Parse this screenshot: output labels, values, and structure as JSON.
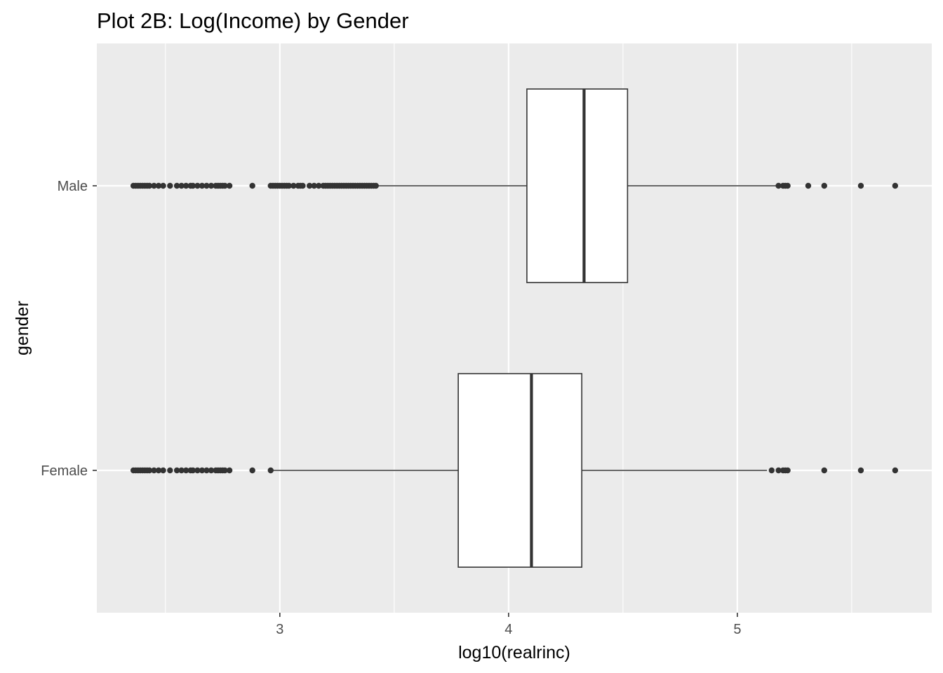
{
  "chart_data": {
    "type": "boxplot",
    "orientation": "horizontal",
    "title": "Plot 2B: Log(Income) by Gender",
    "xlabel": "log10(realrinc)",
    "ylabel": "gender",
    "xlim": [
      2.2,
      5.85
    ],
    "x_ticks": [
      3,
      4,
      5
    ],
    "x_tick_labels": [
      "3",
      "4",
      "5"
    ],
    "x_minor_gridlines": [
      2.5,
      3.5,
      4.5,
      5.5
    ],
    "categories": [
      "Male",
      "Female"
    ],
    "grid": true,
    "legend": "none",
    "colors": {
      "panel_background": "#ebebeb",
      "grid_line": "#ffffff",
      "box_fill": "#ffffff",
      "box_line": "#333333",
      "outlier": "#333333"
    },
    "boxes": [
      {
        "category": "Male",
        "whisker_low": 3.43,
        "q1": 4.08,
        "median": 4.33,
        "q3": 4.52,
        "whisker_high": 5.17,
        "outliers": [
          2.36,
          2.37,
          2.38,
          2.39,
          2.4,
          2.41,
          2.42,
          2.43,
          2.45,
          2.47,
          2.49,
          2.52,
          2.55,
          2.57,
          2.59,
          2.61,
          2.62,
          2.64,
          2.66,
          2.68,
          2.7,
          2.72,
          2.73,
          2.74,
          2.75,
          2.76,
          2.78,
          2.88,
          2.96,
          2.97,
          2.98,
          2.99,
          3.0,
          3.01,
          3.02,
          3.03,
          3.04,
          3.06,
          3.08,
          3.09,
          3.1,
          3.13,
          3.15,
          3.17,
          3.19,
          3.2,
          3.21,
          3.22,
          3.23,
          3.24,
          3.25,
          3.26,
          3.27,
          3.28,
          3.29,
          3.3,
          3.31,
          3.32,
          3.33,
          3.34,
          3.35,
          3.36,
          3.37,
          3.38,
          3.39,
          3.4,
          3.41,
          3.42,
          5.18,
          5.2,
          5.21,
          5.22,
          5.31,
          5.38,
          5.54,
          5.69
        ]
      },
      {
        "category": "Female",
        "whisker_low": 2.96,
        "q1": 3.78,
        "median": 4.1,
        "q3": 4.32,
        "whisker_high": 5.13,
        "outliers": [
          2.36,
          2.37,
          2.38,
          2.39,
          2.4,
          2.41,
          2.42,
          2.43,
          2.45,
          2.47,
          2.49,
          2.52,
          2.55,
          2.57,
          2.59,
          2.61,
          2.62,
          2.64,
          2.66,
          2.68,
          2.7,
          2.72,
          2.73,
          2.74,
          2.75,
          2.76,
          2.78,
          2.88,
          2.96,
          5.15,
          5.18,
          5.2,
          5.21,
          5.22,
          5.38,
          5.54,
          5.69
        ]
      }
    ]
  }
}
